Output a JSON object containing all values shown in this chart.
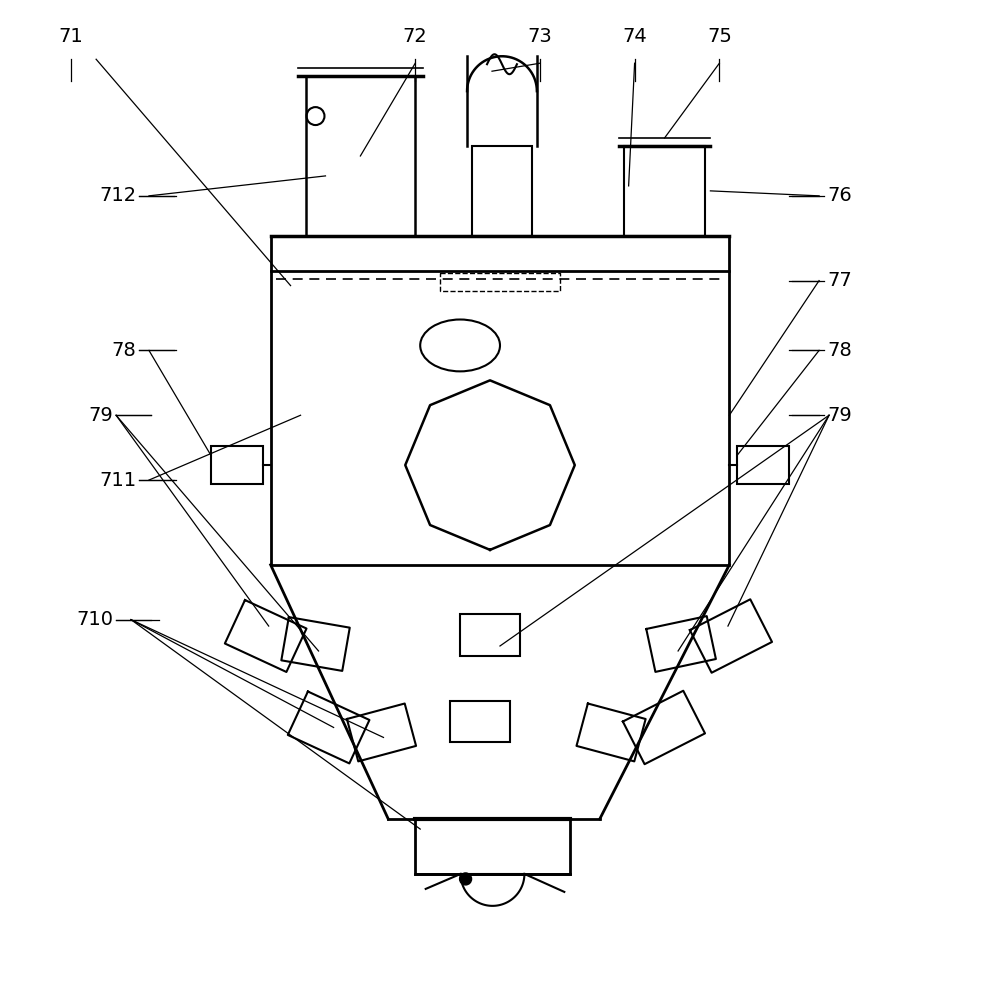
{
  "bg_color": "#ffffff",
  "line_color": "#000000",
  "fig_width": 9.91,
  "fig_height": 10.0,
  "lw_main": 1.8,
  "lw_thin": 1.2,
  "lw_ref": 0.9,
  "fontsize": 14
}
